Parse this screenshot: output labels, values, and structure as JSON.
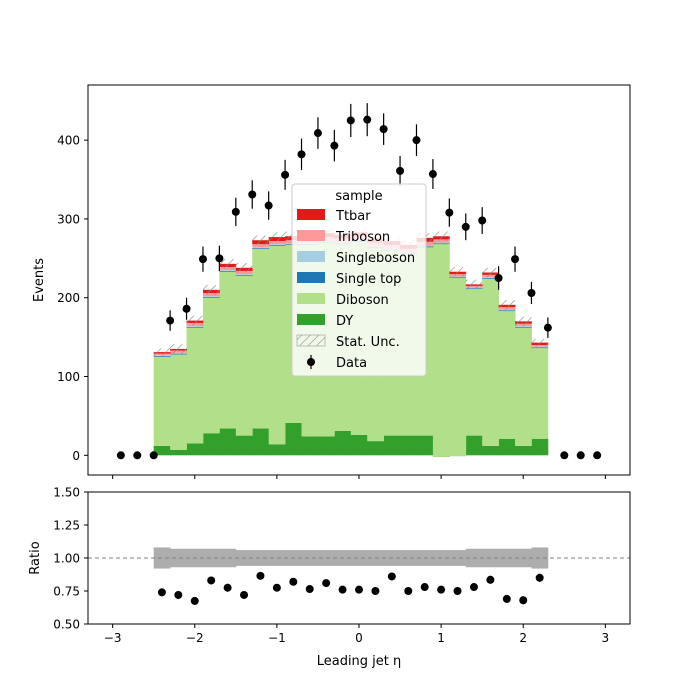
{
  "chart_data": {
    "type": "bar",
    "subtype": "stacked-histogram-with-ratio",
    "x_edges": [
      -2.5,
      -2.3,
      -2.1,
      -1.9,
      -1.7,
      -1.5,
      -1.3,
      -1.1,
      -0.9,
      -0.7,
      -0.5,
      -0.3,
      -0.1,
      0.1,
      0.3,
      0.5,
      0.7,
      0.9,
      1.1,
      1.3,
      1.5,
      1.7,
      1.9,
      2.1,
      2.3
    ],
    "xlabel": "Leading jet  η",
    "xlim": [
      -3.3,
      3.3
    ],
    "x_ticks": [
      -3,
      -2,
      -1,
      0,
      1,
      2,
      3
    ],
    "x_tick_labels": [
      "−3",
      "−2",
      "−1",
      "0",
      "1",
      "2",
      "3"
    ],
    "main": {
      "ylabel": "Events",
      "ylim": [
        -25,
        470
      ],
      "y_ticks": [
        0,
        100,
        200,
        300,
        400
      ],
      "y_tick_labels": [
        "0",
        "100",
        "200",
        "300",
        "400"
      ]
    },
    "ratio": {
      "ylabel": "Ratio",
      "ylim": [
        0.5,
        1.5
      ],
      "y_ticks": [
        0.5,
        0.75,
        1.0,
        1.25,
        1.5
      ],
      "y_tick_labels": [
        "0.50",
        "0.75",
        "1.00",
        "1.25",
        "1.50"
      ],
      "reference_line": 1.0,
      "unc_band": [
        0.08,
        0.07,
        0.07,
        0.07,
        0.07,
        0.06,
        0.06,
        0.06,
        0.06,
        0.06,
        0.06,
        0.06,
        0.06,
        0.06,
        0.06,
        0.06,
        0.06,
        0.06,
        0.06,
        0.07,
        0.07,
        0.07,
        0.07,
        0.08
      ],
      "values": [
        0.74,
        0.72,
        0.675,
        0.83,
        0.775,
        0.72,
        0.865,
        0.775,
        0.82,
        0.765,
        0.81,
        0.76,
        0.76,
        0.75,
        0.86,
        0.75,
        0.78,
        0.76,
        0.75,
        0.78,
        0.835,
        0.69,
        0.68,
        0.85
      ],
      "errors": [
        0.03,
        0.03,
        0.03,
        0.03,
        0.03,
        0.02,
        0.02,
        0.02,
        0.02,
        0.02,
        0.02,
        0.02,
        0.02,
        0.02,
        0.02,
        0.02,
        0.02,
        0.02,
        0.02,
        0.02,
        0.03,
        0.03,
        0.03,
        0.03
      ]
    },
    "series": [
      {
        "name": "DY",
        "color": "#33a02c",
        "values": [
          12,
          7,
          15,
          28,
          34,
          25,
          34,
          14,
          41,
          24,
          24,
          31,
          26,
          18,
          25,
          25,
          25,
          -2,
          -1,
          25,
          12,
          21,
          12,
          21
        ]
      },
      {
        "name": "Diboson",
        "color": "#b2df8a",
        "values": [
          113,
          121,
          147,
          172,
          199,
          203,
          228,
          252,
          226,
          243,
          246,
          237,
          245,
          245,
          235,
          230,
          239,
          270,
          226,
          186,
          212,
          162,
          150,
          115
        ]
      },
      {
        "name": "Single top",
        "color": "#1f78b4",
        "values": [
          1,
          1,
          1,
          1,
          1,
          1,
          1,
          1,
          1,
          1,
          1,
          1,
          1,
          1,
          1,
          1,
          1,
          1,
          1,
          1,
          1,
          1,
          1,
          1
        ]
      },
      {
        "name": "Singleboson",
        "color": "#a6cee3",
        "values": [
          1,
          1,
          1,
          1,
          1,
          1,
          1,
          1,
          1,
          1,
          1,
          1,
          1,
          1,
          1,
          1,
          1,
          1,
          1,
          1,
          1,
          1,
          1,
          1
        ]
      },
      {
        "name": "Triboson",
        "color": "#fb9a99",
        "values": [
          2,
          3,
          4,
          4,
          4,
          4,
          4,
          4,
          4,
          5,
          5,
          5,
          5,
          5,
          5,
          5,
          5,
          4,
          3,
          2,
          3,
          3,
          3,
          2
        ]
      },
      {
        "name": "Ttbar",
        "color": "#e31a1c",
        "values": [
          2,
          2,
          3,
          4,
          4,
          4,
          5,
          5,
          5,
          5,
          5,
          5,
          5,
          5,
          5,
          5,
          5,
          4,
          3,
          2,
          3,
          3,
          3,
          3
        ]
      }
    ],
    "stat_unc": [
      5,
      6,
      6,
      6,
      6,
      6,
      6,
      6,
      6,
      6,
      6,
      6,
      6,
      6,
      6,
      6,
      6,
      6,
      6,
      6,
      6,
      6,
      6,
      5
    ],
    "data": {
      "name": "Data",
      "x": [
        -2.9,
        -2.7,
        -2.5,
        -2.3,
        -2.1,
        -1.9,
        -1.7,
        -1.5,
        -1.3,
        -1.1,
        -0.9,
        -0.7,
        -0.5,
        -0.3,
        -0.1,
        0.1,
        0.3,
        0.5,
        0.7,
        0.9,
        1.1,
        1.3,
        1.5,
        1.7,
        1.9,
        2.1,
        2.3,
        2.5,
        2.7,
        2.9
      ],
      "y": [
        0,
        0,
        0,
        171,
        186,
        249,
        250,
        309,
        331,
        317,
        356,
        382,
        409,
        393,
        425,
        426,
        414,
        361,
        400,
        357,
        308,
        290,
        298,
        225,
        249,
        206,
        162,
        0,
        0,
        0
      ],
      "err": [
        0,
        0,
        0,
        13,
        14,
        16,
        16,
        18,
        18,
        18,
        19,
        20,
        20,
        20,
        21,
        21,
        20,
        19,
        20,
        19,
        18,
        17,
        17,
        15,
        16,
        14,
        13,
        0,
        0,
        0
      ]
    },
    "legend": {
      "title": "sample",
      "placement": "upper-center",
      "entries": [
        "Ttbar",
        "Triboson",
        "Singleboson",
        "Single top",
        "Diboson",
        "DY",
        "Stat. Unc.",
        "Data"
      ]
    }
  }
}
